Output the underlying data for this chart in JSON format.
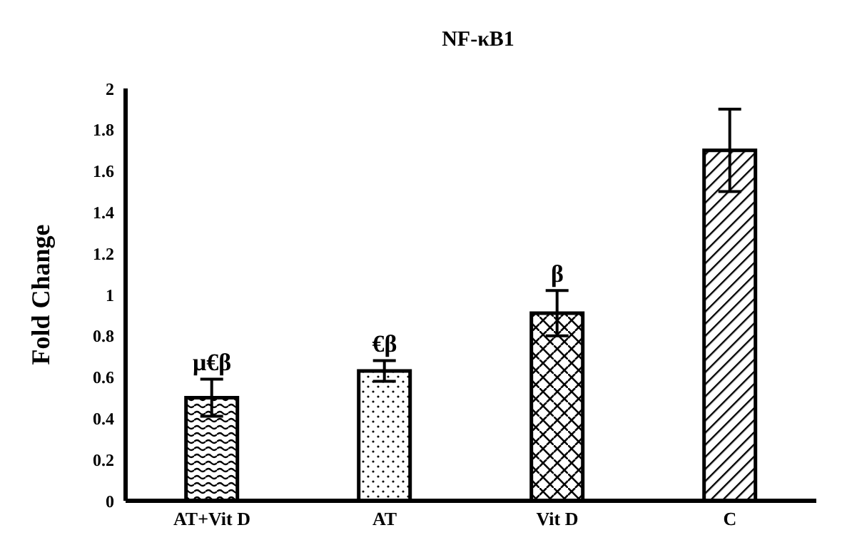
{
  "chart_data": {
    "type": "bar",
    "title": "NF-κB1",
    "ylabel": "Fold Change",
    "categories": [
      "AT+Vit D",
      "AT",
      "Vit D",
      "C"
    ],
    "values": [
      0.5,
      0.63,
      0.91,
      1.7
    ],
    "errors": [
      0.09,
      0.05,
      0.11,
      0.2
    ],
    "colors": [
      "#000000",
      "#000000",
      "#000000",
      "#000000"
    ],
    "ylim": [
      0,
      2
    ],
    "yticks": [
      0,
      0.2,
      0.4,
      0.6,
      0.8,
      1,
      1.2,
      1.4,
      1.6,
      1.8,
      2
    ],
    "annotations": [
      {
        "text": "μ€β",
        "x": "AT+Vit D",
        "y": 0.59
      },
      {
        "text": "€β",
        "x": "AT",
        "y": 0.68
      },
      {
        "text": "β",
        "x": "Vit D",
        "y": 1.02
      }
    ],
    "grid": false,
    "legend": false
  }
}
